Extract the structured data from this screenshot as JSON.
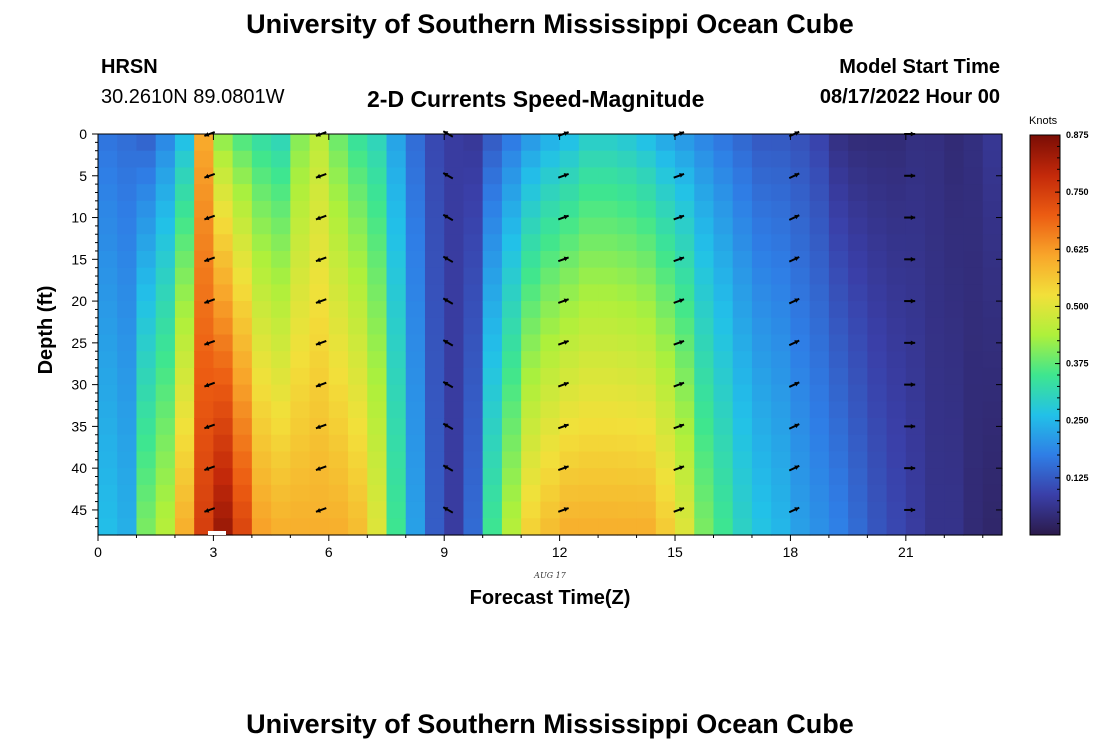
{
  "page": {
    "title": "University of Southern Mississippi Ocean Cube",
    "station": "HRSN",
    "coords": "30.2610N  89.0801W",
    "subtitle": "2-D Currents Speed-Magnitude",
    "model_start_label": "Model Start Time",
    "model_start_value": "08/17/2022 Hour 00",
    "footer_title": "University of Southern Mississippi Ocean Cube"
  },
  "chart_data": {
    "type": "heatmap",
    "title": "2-D Currents Speed-Magnitude",
    "xlabel": "Forecast Time(Z)",
    "ylabel": "Depth (ft)",
    "date_label": "AUG 17",
    "xlim": [
      0,
      23.5
    ],
    "ylim": [
      0,
      48
    ],
    "xticks": [
      0,
      3,
      6,
      9,
      12,
      15,
      18,
      21
    ],
    "yticks": [
      0,
      5,
      10,
      15,
      20,
      25,
      30,
      35,
      40,
      45
    ],
    "colorbar": {
      "label": "Knots",
      "range": [
        0,
        0.875
      ],
      "ticks": [
        "0.125",
        "0.250",
        "0.375",
        "0.500",
        "0.625",
        "0.750",
        "0.875"
      ],
      "stops": [
        "#2b1a4a",
        "#3a3fa8",
        "#2f7ee6",
        "#22c1e8",
        "#3ee68f",
        "#aef03b",
        "#f2e03a",
        "#f8a52a",
        "#ec5c12",
        "#c3290a",
        "#7a0d05"
      ]
    },
    "time_hours": [
      0,
      0.5,
      1,
      1.5,
      2,
      2.5,
      3,
      3.5,
      4,
      4.5,
      5,
      5.5,
      6,
      6.5,
      7,
      7.5,
      8,
      8.5,
      9,
      9.5,
      10,
      10.5,
      11,
      11.5,
      12,
      12.5,
      13,
      13.5,
      14,
      14.5,
      15,
      15.5,
      16,
      16.5,
      17,
      17.5,
      18,
      18.5,
      19,
      19.5,
      20,
      20.5,
      21,
      21.5,
      22,
      22.5,
      23
    ],
    "speed_surface_knots": [
      0.16,
      0.15,
      0.13,
      0.18,
      0.25,
      0.6,
      0.4,
      0.35,
      0.32,
      0.3,
      0.4,
      0.45,
      0.38,
      0.33,
      0.3,
      0.22,
      0.15,
      0.1,
      0.08,
      0.07,
      0.12,
      0.16,
      0.2,
      0.23,
      0.25,
      0.28,
      0.28,
      0.27,
      0.25,
      0.22,
      0.2,
      0.18,
      0.16,
      0.14,
      0.12,
      0.12,
      0.11,
      0.09,
      0.05,
      0.04,
      0.04,
      0.04,
      0.05,
      0.05,
      0.04,
      0.05,
      0.07
    ],
    "speed_bottom_knots": [
      0.26,
      0.24,
      0.4,
      0.45,
      0.6,
      0.75,
      0.84,
      0.74,
      0.62,
      0.6,
      0.6,
      0.6,
      0.6,
      0.58,
      0.5,
      0.35,
      0.22,
      0.13,
      0.08,
      0.15,
      0.35,
      0.45,
      0.55,
      0.58,
      0.6,
      0.6,
      0.6,
      0.6,
      0.6,
      0.56,
      0.5,
      0.4,
      0.35,
      0.3,
      0.27,
      0.25,
      0.22,
      0.2,
      0.18,
      0.15,
      0.12,
      0.1,
      0.08,
      0.06,
      0.06,
      0.04,
      0.03
    ],
    "vectors": {
      "times": [
        2.9,
        5.8,
        9.1,
        12.1,
        15.1,
        18.1,
        21.1
      ],
      "depths": [
        0,
        5,
        10,
        15,
        20,
        25,
        30,
        35,
        40,
        45
      ],
      "direction_deg": [
        200,
        200,
        150,
        20,
        20,
        25,
        0
      ]
    }
  }
}
